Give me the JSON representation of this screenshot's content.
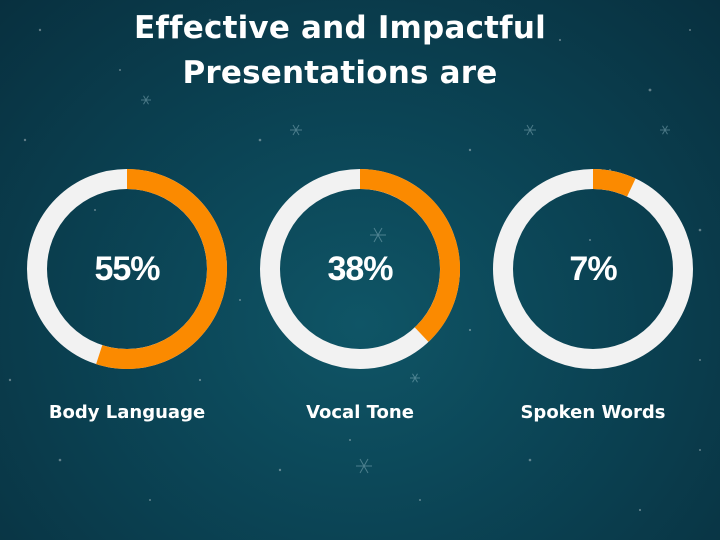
{
  "title_lines": [
    "Effective and Impactful",
    "Presentations are"
  ],
  "colors": {
    "filled": "#fb8a00",
    "track": "#f2f2f2",
    "background": "#0b4455"
  },
  "chart_data": [
    {
      "type": "pie",
      "label": "Body Language",
      "value": 55,
      "display": "55%"
    },
    {
      "type": "pie",
      "label": "Vocal Tone",
      "value": 38,
      "display": "38%"
    },
    {
      "type": "pie",
      "label": "Spoken Words",
      "value": 7,
      "display": "7%"
    }
  ]
}
